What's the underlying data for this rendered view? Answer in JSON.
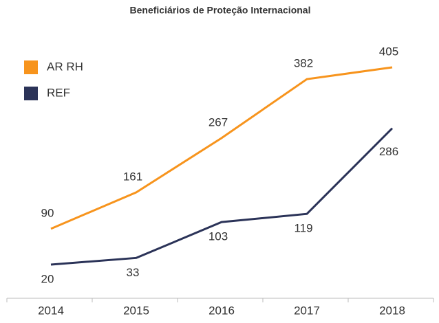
{
  "chart_data": {
    "type": "line",
    "title": "Beneficiários de Proteção Internacional",
    "categories": [
      "2014",
      "2015",
      "2016",
      "2017",
      "2018"
    ],
    "series": [
      {
        "name": "AR RH",
        "color": "#f7941d",
        "values": [
          90,
          161,
          267,
          382,
          405
        ]
      },
      {
        "name": "REF",
        "color": "#2b3358",
        "values": [
          20,
          33,
          103,
          119,
          286
        ]
      }
    ],
    "legend": "top-left"
  }
}
